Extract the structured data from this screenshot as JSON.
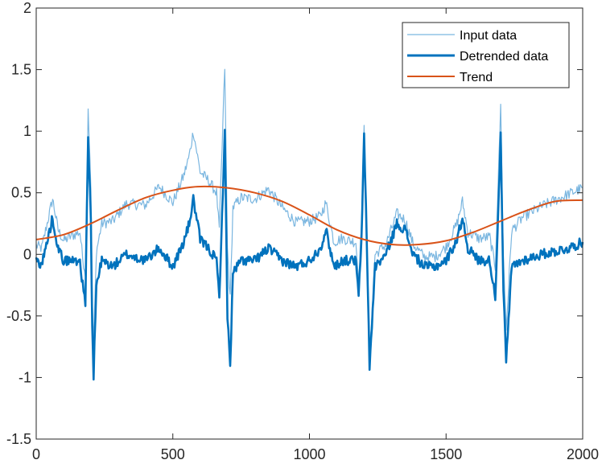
{
  "chart_data": {
    "type": "line",
    "title": "",
    "xlabel": "",
    "ylabel": "",
    "xlim": [
      0,
      2000
    ],
    "ylim": [
      -1.5,
      2
    ],
    "xticks": [
      0,
      500,
      1000,
      1500,
      2000
    ],
    "xtick_labels": [
      "0",
      "500",
      "1000",
      "1500",
      "2000"
    ],
    "yticks": [
      -1.5,
      -1,
      -0.5,
      0,
      0.5,
      1,
      1.5,
      2
    ],
    "ytick_labels": [
      "-1.5",
      "-1",
      "-0.5",
      "0",
      "0.5",
      "1",
      "1.5",
      "2"
    ],
    "grid": false,
    "legend": {
      "placement": "top-right",
      "entries": [
        "Input data",
        "Detrended data",
        "Trend"
      ]
    },
    "colors": {
      "input": "#7ab6e0",
      "detrended": "#0072bd",
      "trend": "#d95319"
    },
    "series": [
      {
        "name": "Trend",
        "x": [
          0,
          100,
          200,
          300,
          400,
          500,
          590,
          700,
          800,
          900,
          1000,
          1100,
          1200,
          1300,
          1400,
          1500,
          1600,
          1700,
          1800,
          1900,
          2000
        ],
        "values": [
          0.12,
          0.16,
          0.25,
          0.36,
          0.46,
          0.52,
          0.55,
          0.54,
          0.5,
          0.43,
          0.32,
          0.2,
          0.12,
          0.08,
          0.08,
          0.11,
          0.18,
          0.27,
          0.36,
          0.43,
          0.44
        ]
      },
      {
        "name": "Detrended data",
        "x": [
          0,
          20,
          40,
          60,
          80,
          100,
          130,
          160,
          170,
          180,
          190,
          200,
          205,
          210,
          220,
          240,
          280,
          330,
          400,
          450,
          500,
          540,
          560,
          575,
          600,
          630,
          660,
          670,
          680,
          690,
          700,
          710,
          720,
          750,
          800,
          850,
          900,
          950,
          1000,
          1040,
          1060,
          1075,
          1090,
          1120,
          1150,
          1170,
          1180,
          1190,
          1200,
          1210,
          1220,
          1240,
          1280,
          1320,
          1350,
          1380,
          1420,
          1460,
          1500,
          1540,
          1560,
          1580,
          1620,
          1660,
          1680,
          1690,
          1700,
          1710,
          1720,
          1740,
          1780,
          1850,
          1950,
          2000
        ],
        "values": [
          -0.05,
          -0.08,
          0.1,
          0.3,
          0.05,
          -0.05,
          -0.05,
          -0.05,
          -0.25,
          -0.38,
          0.95,
          0.3,
          -0.6,
          -1.0,
          -0.25,
          -0.05,
          -0.1,
          0.0,
          -0.05,
          0.05,
          -0.1,
          0.1,
          0.25,
          0.45,
          0.12,
          0.05,
          -0.05,
          -0.35,
          0.3,
          1.0,
          -0.5,
          -0.9,
          -0.15,
          -0.05,
          -0.05,
          0.05,
          -0.05,
          -0.1,
          -0.05,
          0.05,
          0.2,
          0.05,
          -0.1,
          -0.05,
          -0.05,
          -0.05,
          -0.35,
          0.1,
          0.95,
          0.1,
          -0.92,
          -0.1,
          0.0,
          0.25,
          0.2,
          0.0,
          -0.1,
          -0.1,
          -0.05,
          0.12,
          0.3,
          0.05,
          -0.05,
          -0.05,
          -0.35,
          0.3,
          0.95,
          -0.3,
          -0.88,
          -0.1,
          -0.05,
          0.0,
          0.05,
          0.1
        ]
      },
      {
        "name": "Input data",
        "x": [
          0,
          20,
          40,
          60,
          80,
          100,
          130,
          160,
          170,
          180,
          190,
          200,
          205,
          210,
          220,
          240,
          280,
          330,
          400,
          450,
          500,
          540,
          560,
          575,
          600,
          630,
          660,
          670,
          680,
          690,
          700,
          710,
          720,
          750,
          800,
          850,
          900,
          950,
          1000,
          1040,
          1060,
          1075,
          1090,
          1120,
          1150,
          1170,
          1180,
          1190,
          1200,
          1210,
          1220,
          1240,
          1280,
          1320,
          1350,
          1380,
          1420,
          1460,
          1500,
          1540,
          1560,
          1580,
          1620,
          1660,
          1680,
          1690,
          1700,
          1710,
          1720,
          1740,
          1780,
          1850,
          1950,
          2000
        ],
        "values": [
          0.07,
          0.05,
          0.25,
          0.45,
          0.2,
          0.11,
          0.15,
          0.18,
          -0.03,
          -0.15,
          1.2,
          0.56,
          -0.35,
          -0.74,
          0.02,
          0.25,
          0.27,
          0.41,
          0.4,
          0.55,
          0.42,
          0.64,
          0.8,
          1.0,
          0.67,
          0.6,
          0.5,
          0.2,
          0.85,
          1.52,
          0.04,
          -0.36,
          0.38,
          0.46,
          0.45,
          0.53,
          0.38,
          0.26,
          0.27,
          0.31,
          0.42,
          0.26,
          0.1,
          0.13,
          0.11,
          0.1,
          -0.22,
          0.23,
          1.02,
          0.17,
          -0.83,
          0.0,
          0.08,
          0.33,
          0.28,
          0.08,
          -0.02,
          -0.02,
          0.06,
          0.25,
          0.43,
          0.18,
          0.13,
          0.14,
          -0.1,
          0.55,
          1.2,
          -0.04,
          -0.61,
          0.19,
          0.3,
          0.39,
          0.49,
          0.54
        ]
      }
    ]
  }
}
